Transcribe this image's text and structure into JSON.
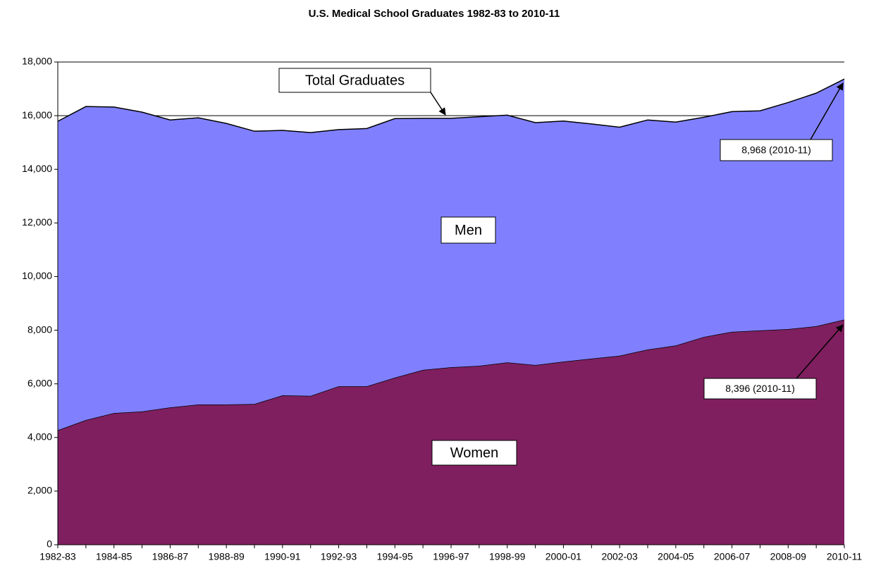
{
  "chart_data": {
    "type": "stacked_area",
    "title": "U.S. Medical School Graduates 1982-83 to 2010-11",
    "categories": [
      "1982-83",
      null,
      "1984-85",
      null,
      "1986-87",
      null,
      "1988-89",
      null,
      "1990-91",
      null,
      "1992-93",
      null,
      "1994-95",
      null,
      "1996-97",
      null,
      "1998-99",
      null,
      "2000-01",
      null,
      "2002-03",
      null,
      "2004-05",
      null,
      "2006-07",
      null,
      "2008-09",
      null,
      "2010-11"
    ],
    "series": [
      {
        "name": "Women",
        "color": "#7f1f5f",
        "values": [
          4270,
          4650,
          4910,
          4970,
          5120,
          5230,
          5230,
          5250,
          5570,
          5550,
          5910,
          5910,
          6230,
          6520,
          6620,
          6670,
          6800,
          6700,
          6830,
          6940,
          7050,
          7280,
          7430,
          7750,
          7940,
          7990,
          8040,
          8150,
          8396
        ]
      },
      {
        "name": "Men",
        "color": "#8080ff",
        "values": [
          11520,
          11690,
          11410,
          11160,
          10720,
          10690,
          10480,
          10170,
          9880,
          9820,
          9570,
          9610,
          9660,
          9380,
          9280,
          9290,
          9220,
          9040,
          8970,
          8750,
          8520,
          8560,
          8330,
          8190,
          8210,
          8190,
          8450,
          8690,
          8968
        ]
      }
    ],
    "ylim": [
      0,
      18000
    ],
    "yticks": [
      0,
      {
        "value": 2000,
        "label": "2,000"
      },
      {
        "value": 4000,
        "label": "4,000"
      },
      {
        "value": 6000,
        "label": "6,000"
      },
      {
        "value": 8000,
        "label": "8,000"
      },
      {
        "value": 10000,
        "label": "10,000"
      },
      {
        "value": 12000,
        "label": "12,000"
      },
      {
        "value": 14000,
        "label": "14,000"
      },
      {
        "value": 16000,
        "label": "16,000"
      },
      {
        "value": 18000,
        "label": "18,000"
      }
    ],
    "grid": true,
    "annotations": [
      "Total Graduates",
      "Men",
      "Women",
      "8,968 (2010-11)",
      "8,396 (2010-11)"
    ]
  }
}
